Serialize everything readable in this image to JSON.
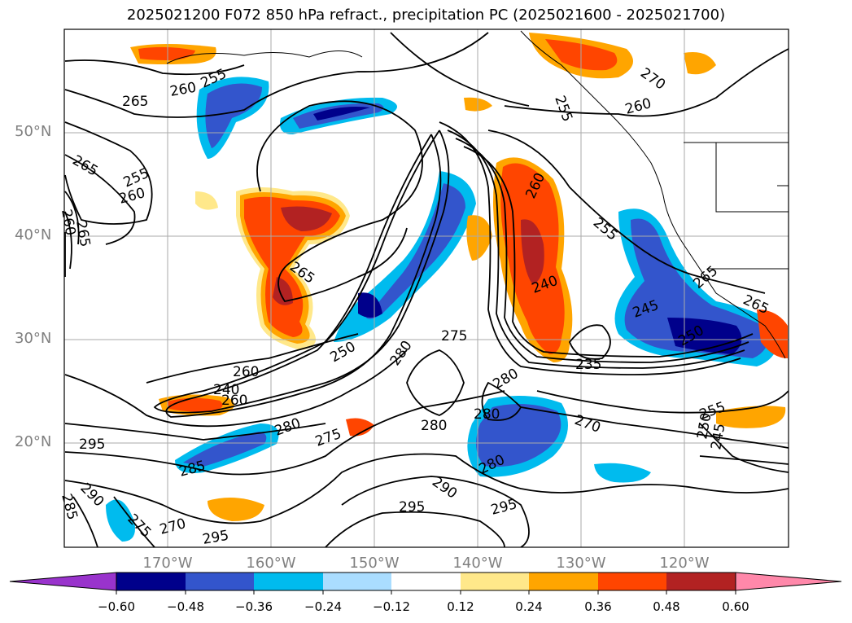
{
  "title": "2025021200 F072 850 hPa refract., precipitation PC (2025021600 - 2025021700)",
  "latitude_labels": [
    "50°N",
    "40°N",
    "30°N",
    "20°N"
  ],
  "longitude_labels": [
    "170°W",
    "160°W",
    "150°W",
    "140°W",
    "130°W",
    "120°W"
  ],
  "contour_labels": [
    "260",
    "255",
    "265",
    "265",
    "255",
    "260",
    "260",
    "265",
    "265",
    "260",
    "255",
    "270",
    "260",
    "255",
    "260",
    "240",
    "235",
    "275",
    "280",
    "280",
    "280",
    "280",
    "270",
    "280",
    "275",
    "285",
    "295",
    "290",
    "285",
    "275",
    "270",
    "295",
    "295",
    "290",
    "295",
    "245",
    "250",
    "265",
    "265",
    "250",
    "245",
    "255",
    "260",
    "240",
    "250",
    "280"
  ],
  "colorbar": {
    "ticks": [
      "−0.60",
      "−0.48",
      "−0.36",
      "−0.24",
      "−0.12",
      "0.12",
      "0.24",
      "0.36",
      "0.48",
      "0.60"
    ],
    "colors": [
      "#9933cc",
      "#00008b",
      "#3355cc",
      "#00bbee",
      "#aaddff",
      "#ffffff",
      "#ffe88a",
      "#ffa500",
      "#ff4500",
      "#b22222",
      "#ff88aa"
    ]
  },
  "palette": {
    "neg_dark": "#00008b",
    "neg_mid": "#3355cc",
    "neg_light": "#00bbee",
    "neg_pale": "#aaddff",
    "pos_pale": "#ffe88a",
    "pos_light": "#ffa500",
    "pos_mid": "#ff4500",
    "pos_dark": "#b22222"
  }
}
